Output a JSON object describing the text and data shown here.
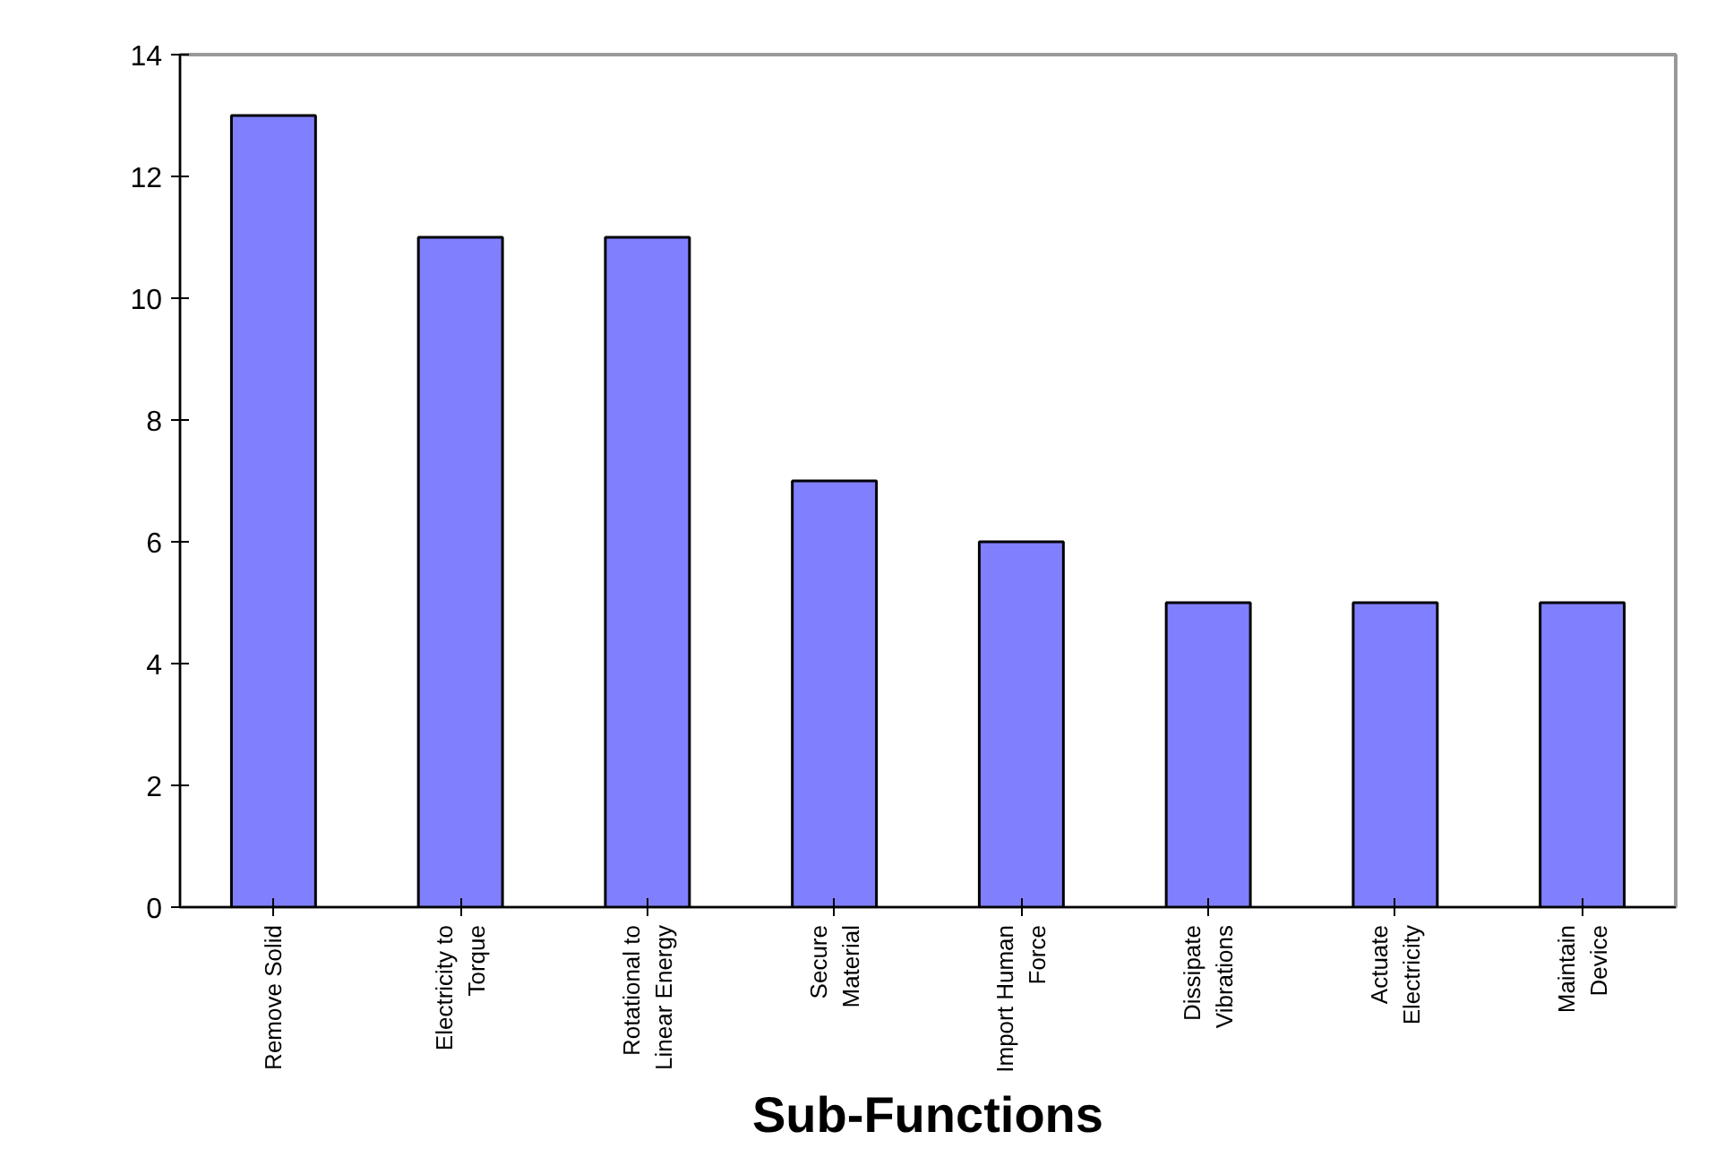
{
  "chart_data": {
    "type": "bar",
    "xlabel": "Sub-Functions",
    "categories": [
      "Remove Solid",
      "Electricity to\nTorque",
      "Rotational to\nLinear Energy",
      "Secure\nMaterial",
      "Import Human\nForce",
      "Dissipate\nVibrations",
      "Actuate\nElectricity",
      "Maintain\nDevice"
    ],
    "values": [
      13,
      11,
      11,
      7,
      6,
      5,
      5,
      5
    ],
    "color": "#8080ff",
    "ylim": [
      0,
      14
    ],
    "yticks": [
      0,
      2,
      4,
      6,
      8,
      10,
      12,
      14
    ],
    "grid": false
  }
}
